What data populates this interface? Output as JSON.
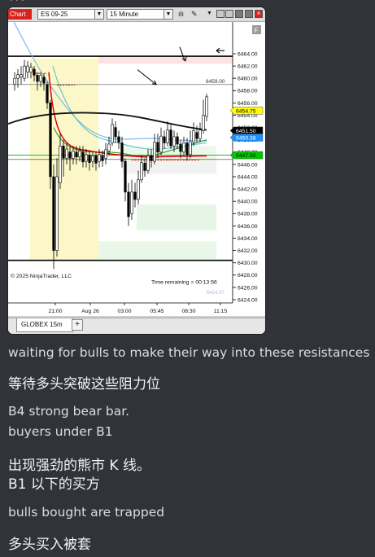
{
  "toolbar": {
    "chart_label": "Chart",
    "instrument": "ES 09-25",
    "interval": "15 Minute"
  },
  "chart": {
    "price_ticks": [
      "6464.00",
      "6462.00",
      "6460.00",
      "6458.00",
      "6456.00",
      "6454.00",
      "6452.00",
      "6450.00",
      "6448.00",
      "6446.00",
      "6444.00",
      "6442.00",
      "6440.00",
      "6438.00",
      "6436.00",
      "6434.00",
      "6432.00",
      "6430.00",
      "6428.00",
      "6426.00",
      "6424.00"
    ],
    "time_ticks": [
      "21:00",
      "Aug 26",
      "03:00",
      "05:45",
      "08:30",
      "11:15"
    ],
    "price_flags": [
      {
        "text": "6454.75",
        "bg": "#ffff00",
        "fg": "#000000"
      },
      {
        "text": "6451.50",
        "bg": "#000000",
        "fg": "#ffffff"
      },
      {
        "text": "6450.38",
        "bg": "#1e90ff",
        "fg": "#ffffff"
      },
      {
        "text": "6447.50",
        "bg": "#00c800",
        "fg": "#000000"
      }
    ],
    "line_label": "6459.00",
    "time_remaining": "Time remaining = 00:13:56",
    "faint_price": "6424.07",
    "copyright": "© 2025 NinjaTrader, LLC",
    "panel_letter": "F"
  },
  "tab": {
    "label": "GLOBEX 15m",
    "add_label": "+"
  },
  "messages": [
    {
      "text": "waiting for bulls to make their way into these resistances"
    },
    {
      "text": "等待多头突破这些阻力位"
    },
    {
      "text": "B4 strong bear bar."
    },
    {
      "text": "buyers under B1"
    },
    {
      "text": "出现强劲的熊市 K 线。"
    },
    {
      "text": "B1 以下的买方"
    },
    {
      "text": "bulls bought  are trapped"
    },
    {
      "text": "多头买入被套"
    }
  ]
}
